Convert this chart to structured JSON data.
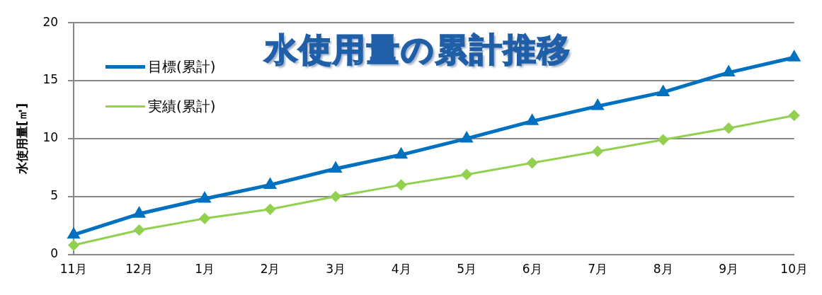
{
  "chart_data": {
    "type": "line",
    "title": "水使用量の累計推移",
    "ylabel": "水使用量[㎥]",
    "categories": [
      "11月",
      "12月",
      "1月",
      "2月",
      "3月",
      "4月",
      "5月",
      "6月",
      "7月",
      "8月",
      "9月",
      "10月"
    ],
    "series": [
      {
        "name": "目標(累計)",
        "color": "#0070c0",
        "marker": "triangle",
        "values": [
          1.7,
          3.5,
          4.8,
          6.0,
          7.4,
          8.6,
          10.0,
          11.5,
          12.8,
          14.0,
          15.7,
          17.0
        ]
      },
      {
        "name": "実績(累計)",
        "color": "#92d050",
        "marker": "diamond",
        "values": [
          0.8,
          2.1,
          3.1,
          3.9,
          5.0,
          6.0,
          6.9,
          7.9,
          8.9,
          9.9,
          10.9,
          12.0
        ]
      }
    ],
    "ylim": [
      0,
      20
    ],
    "yticks": [
      0,
      5,
      10,
      15,
      20
    ],
    "grid": "y",
    "legend": "top left"
  }
}
